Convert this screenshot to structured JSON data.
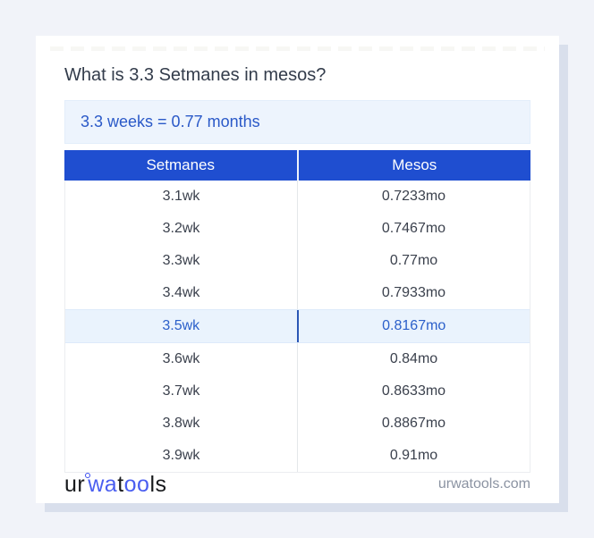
{
  "page": {
    "title": "What is 3.3 Setmanes in mesos?",
    "answer": "3.3 weeks = 0.77 months"
  },
  "table": {
    "headers": [
      "Setmanes",
      "Mesos"
    ],
    "rows": [
      {
        "setmanes": "3.1wk",
        "mesos": "0.7233mo",
        "highlight": false
      },
      {
        "setmanes": "3.2wk",
        "mesos": "0.7467mo",
        "highlight": false
      },
      {
        "setmanes": "3.3wk",
        "mesos": "0.77mo",
        "highlight": false
      },
      {
        "setmanes": "3.4wk",
        "mesos": "0.7933mo",
        "highlight": false
      },
      {
        "setmanes": "3.5wk",
        "mesos": "0.8167mo",
        "highlight": true
      },
      {
        "setmanes": "3.6wk",
        "mesos": "0.84mo",
        "highlight": false
      },
      {
        "setmanes": "3.7wk",
        "mesos": "0.8633mo",
        "highlight": false
      },
      {
        "setmanes": "3.8wk",
        "mesos": "0.8867mo",
        "highlight": false
      },
      {
        "setmanes": "3.9wk",
        "mesos": "0.91mo",
        "highlight": false
      }
    ]
  },
  "footer": {
    "logo": {
      "part1": "ur",
      "part2": "wa",
      "part3": "t",
      "part4": "oo",
      "part5": "ls"
    },
    "domain": "urwatools.com"
  },
  "colors": {
    "header_blue": "#1f4ed0",
    "accent_blue": "#2a59c8",
    "highlight_bg": "#eaf3fd",
    "highlight_divider": "#2b57b5",
    "logo_blue": "#4a5ef0",
    "page_bg": "#f1f3f9",
    "card_shadow": "#d9dfec"
  }
}
